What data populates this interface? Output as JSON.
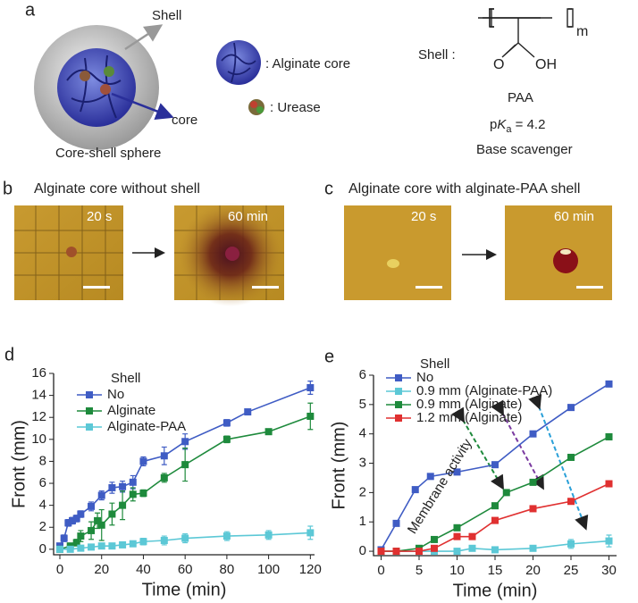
{
  "panel_a": {
    "label": "a",
    "shell": "Shell",
    "core": "core",
    "caption": "Core-shell sphere",
    "alginate_core": ": Alginate core",
    "urease": ": Urease",
    "shell_formula": "Shell :",
    "repeat": "m",
    "oxygen": "O",
    "hydroxyl": "OH",
    "name": "PAA",
    "pka_p": "p",
    "pka_k": "K",
    "pka_a": "a",
    "pka_value": " = 4.2",
    "role": "Base scavenger"
  },
  "panel_b": {
    "label": "b",
    "title": "Alginate core without shell",
    "time_1": "20 s",
    "time_2": "60 min"
  },
  "panel_c": {
    "label": "c",
    "title": "Alginate core with alginate-PAA shell",
    "time_1": "20 s",
    "time_2": "60 min"
  },
  "chart_data": [
    {
      "type": "line",
      "label": "d",
      "xlabel": "Time (min)",
      "ylabel": "Front (mm)",
      "legend_title": "Shell",
      "xlim": [
        -3,
        122
      ],
      "xticks": [
        0,
        20,
        40,
        60,
        80,
        100,
        120
      ],
      "ylim": [
        -0.5,
        16
      ],
      "yticks": [
        0,
        2,
        4,
        6,
        8,
        10,
        12,
        14,
        16
      ],
      "series": [
        {
          "name": "No",
          "color": "#3f5cc4",
          "x": [
            0,
            2,
            4,
            6,
            8,
            10,
            15,
            20,
            25,
            30,
            35,
            40,
            50,
            60,
            80,
            90,
            120
          ],
          "values": [
            0.3,
            1.0,
            2.4,
            2.6,
            2.8,
            3.2,
            3.9,
            4.9,
            5.6,
            5.7,
            6.1,
            8.0,
            8.5,
            9.8,
            11.5,
            12.5,
            14.7
          ],
          "errors": [
            0.2,
            0.3,
            0.3,
            0.3,
            0.3,
            0.3,
            0.4,
            0.4,
            0.5,
            0.5,
            0.6,
            0.4,
            0.8,
            0.7,
            0.3,
            0.2,
            0.6
          ]
        },
        {
          "name": "Alginate",
          "color": "#1e8a3c",
          "x": [
            0,
            5,
            8,
            10,
            15,
            18,
            20,
            25,
            30,
            35,
            40,
            50,
            60,
            80,
            100,
            120
          ],
          "values": [
            0,
            0.3,
            0.6,
            1.2,
            1.7,
            2.6,
            2.2,
            3.2,
            4.0,
            5.0,
            5.1,
            6.5,
            7.7,
            10.0,
            10.7,
            12.1
          ],
          "errors": [
            0.1,
            0.2,
            0.3,
            0.5,
            0.8,
            0.7,
            1.4,
            1.0,
            1.3,
            0.6,
            0.3,
            0.4,
            1.5,
            0.3,
            0.2,
            1.2
          ]
        },
        {
          "name": "Alginate-PAA",
          "color": "#5cc8d6",
          "x": [
            0,
            5,
            10,
            15,
            20,
            25,
            30,
            35,
            40,
            50,
            60,
            80,
            100,
            120
          ],
          "values": [
            0,
            0,
            0.1,
            0.2,
            0.3,
            0.3,
            0.4,
            0.5,
            0.7,
            0.8,
            1.0,
            1.2,
            1.3,
            1.5
          ],
          "errors": [
            0.1,
            0.1,
            0.1,
            0.1,
            0.2,
            0.2,
            0.2,
            0.2,
            0.3,
            0.4,
            0.4,
            0.4,
            0.4,
            0.6
          ]
        }
      ]
    },
    {
      "type": "line",
      "label": "e",
      "xlabel": "Time (min)",
      "ylabel": "Front (mm)",
      "legend_title": "Shell",
      "annotation": "Membrane activity",
      "xlim": [
        -1,
        31
      ],
      "xticks": [
        0,
        5,
        10,
        15,
        20,
        25,
        30
      ],
      "ylim": [
        -0.15,
        6
      ],
      "yticks": [
        0,
        1,
        2,
        3,
        4,
        5,
        6
      ],
      "series": [
        {
          "name": "No",
          "color": "#3f5cc4",
          "x": [
            0,
            2,
            4.5,
            6.5,
            10,
            15,
            20,
            25,
            30
          ],
          "values": [
            0.05,
            0.95,
            2.1,
            2.55,
            2.7,
            2.95,
            4.0,
            4.9,
            5.7
          ]
        },
        {
          "name": "0.9 mm (Alginate-PAA)",
          "color": "#5cc8d6",
          "x": [
            0,
            2,
            5,
            7,
            10,
            12,
            15,
            20,
            25,
            30
          ],
          "values": [
            0,
            0,
            0,
            0,
            0,
            0.1,
            0.05,
            0.1,
            0.25,
            0.35
          ],
          "errors": [
            0.05,
            0.05,
            0.05,
            0.05,
            0.05,
            0.05,
            0.05,
            0.08,
            0.15,
            0.2
          ]
        },
        {
          "name": "0.9 mm (Alginate)",
          "color": "#1e8a3c",
          "x": [
            0,
            2,
            5,
            7,
            10,
            15,
            16.5,
            20,
            25,
            30
          ],
          "values": [
            0,
            0,
            0.1,
            0.4,
            0.8,
            1.55,
            2.0,
            2.35,
            3.2,
            3.9
          ]
        },
        {
          "name": "1.2 mm (Alginate)",
          "color": "#e03030",
          "x": [
            0,
            2,
            5,
            7,
            10,
            12,
            15,
            20,
            25,
            30
          ],
          "values": [
            0,
            0,
            0,
            0.1,
            0.5,
            0.5,
            1.05,
            1.45,
            1.7,
            2.3
          ]
        }
      ]
    }
  ]
}
